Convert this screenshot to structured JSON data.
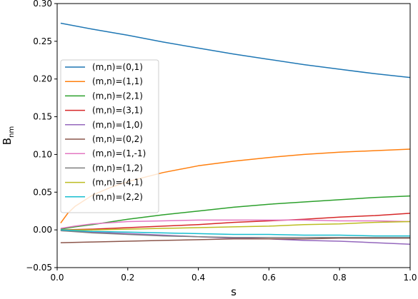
{
  "chart_data": {
    "type": "line",
    "title": "",
    "xlabel": "s",
    "ylabel": "B",
    "ylabel_sub": "nm",
    "xlim": [
      0,
      1
    ],
    "ylim": [
      -0.05,
      0.3
    ],
    "xticks": [
      0.0,
      0.2,
      0.4,
      0.6,
      0.8,
      1.0
    ],
    "xtick_labels": [
      "0.0",
      "0.2",
      "0.4",
      "0.6",
      "0.8",
      "1.0"
    ],
    "yticks": [
      -0.05,
      0.0,
      0.05,
      0.1,
      0.15,
      0.2,
      0.25,
      0.3
    ],
    "ytick_labels": [
      "−0.05",
      "0.00",
      "0.05",
      "0.10",
      "0.15",
      "0.20",
      "0.25",
      "0.30"
    ],
    "grid": false,
    "legend_position": "center-left",
    "series": [
      {
        "name": "(m,n)=(0,1)",
        "color": "#1f77b4",
        "x": [
          0.01,
          0.1,
          0.2,
          0.3,
          0.4,
          0.5,
          0.6,
          0.7,
          0.8,
          0.9,
          1.0
        ],
        "y": [
          0.274,
          0.266,
          0.258,
          0.249,
          0.241,
          0.233,
          0.226,
          0.219,
          0.213,
          0.207,
          0.202
        ]
      },
      {
        "name": "(m,n)=(1,1)",
        "color": "#ff7f0e",
        "x": [
          0.01,
          0.03,
          0.05,
          0.1,
          0.15,
          0.2,
          0.3,
          0.4,
          0.5,
          0.6,
          0.7,
          0.8,
          0.9,
          1.0
        ],
        "y": [
          0.009,
          0.022,
          0.031,
          0.046,
          0.056,
          0.064,
          0.076,
          0.085,
          0.091,
          0.096,
          0.1,
          0.103,
          0.105,
          0.107
        ]
      },
      {
        "name": "(m,n)=(2,1)",
        "color": "#2ca02c",
        "x": [
          0.01,
          0.05,
          0.1,
          0.2,
          0.3,
          0.4,
          0.5,
          0.6,
          0.7,
          0.8,
          0.9,
          1.0
        ],
        "y": [
          0.001,
          0.004,
          0.007,
          0.014,
          0.02,
          0.025,
          0.03,
          0.034,
          0.037,
          0.04,
          0.043,
          0.045
        ]
      },
      {
        "name": "(m,n)=(3,1)",
        "color": "#d62728",
        "x": [
          0.01,
          0.1,
          0.2,
          0.3,
          0.4,
          0.5,
          0.6,
          0.7,
          0.8,
          0.9,
          1.0
        ],
        "y": [
          0.0,
          0.001,
          0.003,
          0.005,
          0.007,
          0.01,
          0.012,
          0.014,
          0.017,
          0.019,
          0.022
        ]
      },
      {
        "name": "(m,n)=(1,0)",
        "color": "#9467bd",
        "x": [
          0.01,
          0.1,
          0.2,
          0.3,
          0.4,
          0.5,
          0.6,
          0.7,
          0.8,
          0.9,
          1.0
        ],
        "y": [
          -0.001,
          -0.003,
          -0.005,
          -0.007,
          -0.009,
          -0.011,
          -0.012,
          -0.014,
          -0.015,
          -0.017,
          -0.019
        ]
      },
      {
        "name": "(m,n)=(0,2)",
        "color": "#8c564b",
        "x": [
          0.01,
          0.1,
          0.2,
          0.3,
          0.4,
          0.5,
          0.6,
          0.7,
          0.8,
          0.9,
          1.0
        ],
        "y": [
          -0.017,
          -0.016,
          -0.015,
          -0.014,
          -0.013,
          -0.012,
          -0.012,
          -0.012,
          -0.011,
          -0.011,
          -0.011
        ]
      },
      {
        "name": "(m,n)=(1,-1)",
        "color": "#e377c2",
        "x": [
          0.01,
          0.05,
          0.1,
          0.2,
          0.3,
          0.4,
          0.5,
          0.6,
          0.7,
          0.8,
          0.9,
          1.0
        ],
        "y": [
          0.002,
          0.005,
          0.008,
          0.011,
          0.012,
          0.013,
          0.013,
          0.013,
          0.013,
          0.012,
          0.012,
          0.011
        ]
      },
      {
        "name": "(m,n)=(1,2)",
        "color": "#7f7f7f",
        "x": [
          0.01,
          0.1,
          0.2,
          0.3,
          0.4,
          0.5,
          0.6,
          0.7,
          0.8,
          0.9,
          1.0
        ],
        "y": [
          -0.001,
          -0.004,
          -0.006,
          -0.008,
          -0.009,
          -0.01,
          -0.01,
          -0.01,
          -0.01,
          -0.01,
          -0.01
        ]
      },
      {
        "name": "(m,n)=(4,1)",
        "color": "#bcbd22",
        "x": [
          0.01,
          0.1,
          0.2,
          0.3,
          0.4,
          0.5,
          0.6,
          0.7,
          0.8,
          0.9,
          1.0
        ],
        "y": [
          0.0,
          0.0,
          0.001,
          0.002,
          0.003,
          0.004,
          0.005,
          0.007,
          0.008,
          0.01,
          0.011
        ]
      },
      {
        "name": "(m,n)=(2,2)",
        "color": "#17becf",
        "x": [
          0.01,
          0.1,
          0.2,
          0.3,
          0.4,
          0.5,
          0.6,
          0.7,
          0.8,
          0.9,
          1.0
        ],
        "y": [
          0.0,
          -0.002,
          -0.003,
          -0.004,
          -0.005,
          -0.006,
          -0.006,
          -0.007,
          -0.007,
          -0.008,
          -0.008
        ]
      }
    ]
  }
}
